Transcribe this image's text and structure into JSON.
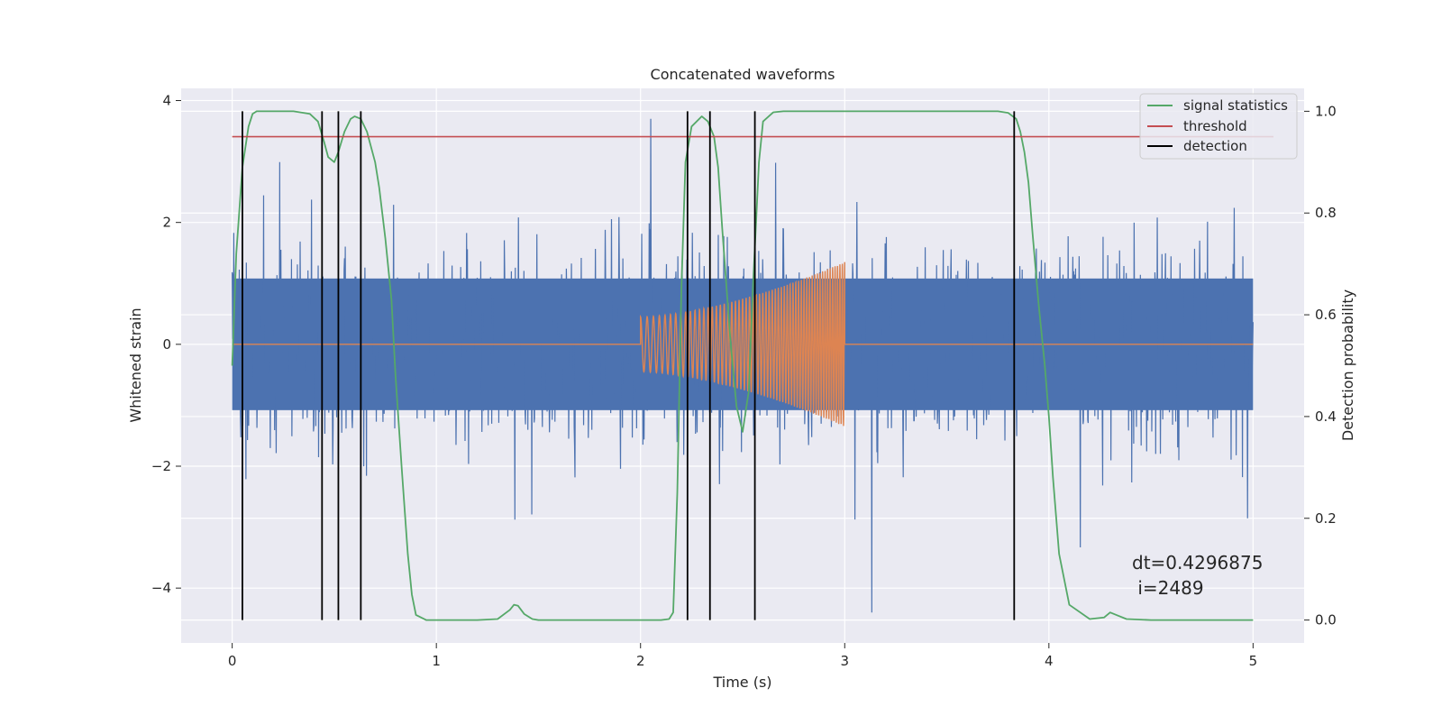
{
  "chart_data": {
    "type": "line",
    "title": "Concatenated waveforms",
    "xlabel": "Time (s)",
    "ylabel": "Whitened strain",
    "ylabel_right": "Detection probability",
    "xlim": [
      -0.25,
      5.25
    ],
    "ylim": [
      -4.9,
      4.2
    ],
    "ylim_right": [
      -0.045,
      1.045
    ],
    "x_ticks": [
      0,
      1,
      2,
      3,
      4,
      5
    ],
    "x_tick_labels": [
      "0",
      "1",
      "2",
      "3",
      "4",
      "5"
    ],
    "y_ticks": [
      -4,
      -2,
      0,
      2,
      4
    ],
    "y_tick_labels": [
      "−4",
      "−2",
      "0",
      "2",
      "4"
    ],
    "y_ticks_right": [
      0.0,
      0.2,
      0.4,
      0.6,
      0.8,
      1.0
    ],
    "y_tick_labels_right": [
      "0.0",
      "0.2",
      "0.4",
      "0.6",
      "0.8",
      "1.0"
    ],
    "grid": true,
    "legend_position": "top-right",
    "legend": [
      {
        "label": "signal statistics",
        "color": "#55a868"
      },
      {
        "label": "threshold",
        "color": "#c44e52"
      },
      {
        "label": "detection",
        "color": "#000000"
      }
    ],
    "series": [
      {
        "name_hidden": "whitened noise strain",
        "color": "#4c72b0",
        "axis": "left",
        "x_range": [
          0,
          5
        ],
        "typical_range": [
          -1.8,
          1.8
        ],
        "extreme_range": [
          -4.4,
          3.7
        ]
      },
      {
        "name_hidden": "injected chirp",
        "color": "#dd8452",
        "axis": "left",
        "start": 2.0,
        "end": 3.0,
        "amplitude_start": 0.45,
        "amplitude_end": 1.35
      },
      {
        "name": "signal statistics",
        "color": "#55a868",
        "axis": "right",
        "x": [
          0.0,
          0.02,
          0.05,
          0.08,
          0.1,
          0.12,
          0.15,
          0.2,
          0.3,
          0.38,
          0.42,
          0.45,
          0.47,
          0.5,
          0.52,
          0.55,
          0.58,
          0.6,
          0.63,
          0.66,
          0.7,
          0.72,
          0.75,
          0.78,
          0.8,
          0.83,
          0.86,
          0.88,
          0.9,
          0.95,
          1.2,
          1.3,
          1.36,
          1.38,
          1.4,
          1.43,
          1.47,
          1.5,
          1.7,
          2.0,
          2.1,
          2.14,
          2.16,
          2.18,
          2.2,
          2.22,
          2.25,
          2.3,
          2.33,
          2.36,
          2.38,
          2.4,
          2.44,
          2.47,
          2.5,
          2.53,
          2.55,
          2.58,
          2.6,
          2.65,
          2.7,
          3.0,
          3.5,
          3.75,
          3.8,
          3.84,
          3.86,
          3.88,
          3.9,
          3.92,
          3.95,
          3.98,
          4.0,
          4.02,
          4.05,
          4.1,
          4.2,
          4.27,
          4.3,
          4.33,
          4.38,
          4.5,
          5.0
        ],
        "values": [
          0.5,
          0.72,
          0.89,
          0.97,
          0.995,
          1.0,
          1.0,
          1.0,
          1.0,
          0.995,
          0.98,
          0.94,
          0.91,
          0.9,
          0.92,
          0.96,
          0.985,
          0.99,
          0.985,
          0.96,
          0.9,
          0.85,
          0.75,
          0.63,
          0.48,
          0.3,
          0.13,
          0.05,
          0.01,
          0.0,
          0.0,
          0.002,
          0.02,
          0.03,
          0.028,
          0.012,
          0.002,
          0.0,
          0.0,
          0.0,
          0.0,
          0.002,
          0.015,
          0.25,
          0.65,
          0.9,
          0.97,
          0.99,
          0.98,
          0.95,
          0.89,
          0.77,
          0.55,
          0.42,
          0.37,
          0.45,
          0.65,
          0.9,
          0.98,
          0.998,
          1.0,
          1.0,
          1.0,
          1.0,
          0.997,
          0.985,
          0.96,
          0.92,
          0.86,
          0.76,
          0.62,
          0.5,
          0.4,
          0.28,
          0.13,
          0.03,
          0.002,
          0.005,
          0.015,
          0.01,
          0.002,
          0.0,
          0.0
        ]
      },
      {
        "name": "threshold",
        "color": "#c44e52",
        "axis": "right",
        "x": [
          0,
          5.1
        ],
        "values": [
          0.95,
          0.95
        ]
      },
      {
        "name": "detection",
        "color": "#000000",
        "axis": "right",
        "type": "vlines",
        "x": [
          0.05,
          0.44,
          0.52,
          0.63,
          2.23,
          2.34,
          2.56,
          3.83
        ],
        "y_range": [
          0.0,
          1.0
        ]
      }
    ],
    "annotations": [
      {
        "text": "dt=0.4296875",
        "x": 4.5,
        "y_right": 0.11
      },
      {
        "text": " i=2489",
        "x": 4.5,
        "y_right": 0.06
      }
    ]
  }
}
